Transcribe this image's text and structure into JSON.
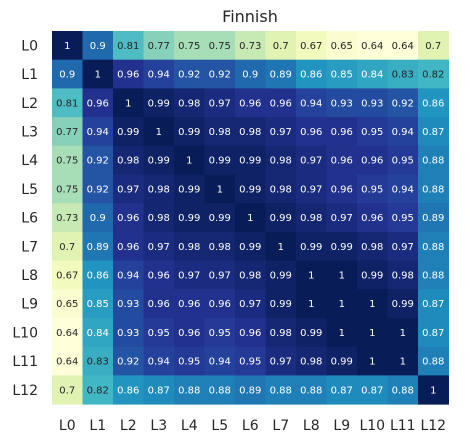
{
  "chart_data": {
    "type": "heatmap",
    "title": "Finnish",
    "xlabel": "",
    "ylabel": "",
    "x_categories": [
      "L0",
      "L1",
      "L2",
      "L3",
      "L4",
      "L5",
      "L6",
      "L7",
      "L8",
      "L9",
      "L10",
      "L11",
      "L12"
    ],
    "y_categories": [
      "L0",
      "L1",
      "L2",
      "L3",
      "L4",
      "L5",
      "L6",
      "L7",
      "L8",
      "L9",
      "L10",
      "L11",
      "L12"
    ],
    "values": [
      [
        1,
        0.9,
        0.81,
        0.77,
        0.75,
        0.75,
        0.73,
        0.7,
        0.67,
        0.65,
        0.64,
        0.64,
        0.7
      ],
      [
        0.9,
        1,
        0.96,
        0.94,
        0.92,
        0.92,
        0.9,
        0.89,
        0.86,
        0.85,
        0.84,
        0.83,
        0.82
      ],
      [
        0.81,
        0.96,
        1,
        0.99,
        0.98,
        0.97,
        0.96,
        0.96,
        0.94,
        0.93,
        0.93,
        0.92,
        0.86
      ],
      [
        0.77,
        0.94,
        0.99,
        1,
        0.99,
        0.98,
        0.98,
        0.97,
        0.96,
        0.96,
        0.95,
        0.94,
        0.87
      ],
      [
        0.75,
        0.92,
        0.98,
        0.99,
        1,
        0.99,
        0.99,
        0.98,
        0.97,
        0.96,
        0.96,
        0.95,
        0.88
      ],
      [
        0.75,
        0.92,
        0.97,
        0.98,
        0.99,
        1,
        0.99,
        0.98,
        0.97,
        0.96,
        0.95,
        0.94,
        0.88
      ],
      [
        0.73,
        0.9,
        0.96,
        0.98,
        0.99,
        0.99,
        1,
        0.99,
        0.98,
        0.97,
        0.96,
        0.95,
        0.89
      ],
      [
        0.7,
        0.89,
        0.96,
        0.97,
        0.98,
        0.98,
        0.99,
        1,
        0.99,
        0.99,
        0.98,
        0.97,
        0.88
      ],
      [
        0.67,
        0.86,
        0.94,
        0.96,
        0.97,
        0.97,
        0.98,
        0.99,
        1,
        1,
        0.99,
        0.98,
        0.88
      ],
      [
        0.65,
        0.85,
        0.93,
        0.96,
        0.96,
        0.96,
        0.97,
        0.99,
        1,
        1,
        1,
        0.99,
        0.87
      ],
      [
        0.64,
        0.84,
        0.93,
        0.95,
        0.96,
        0.95,
        0.96,
        0.98,
        0.99,
        1,
        1,
        1,
        0.87
      ],
      [
        0.64,
        0.83,
        0.92,
        0.94,
        0.95,
        0.94,
        0.95,
        0.97,
        0.98,
        0.99,
        1,
        1,
        0.88
      ],
      [
        0.7,
        0.82,
        0.86,
        0.87,
        0.88,
        0.88,
        0.89,
        0.88,
        0.88,
        0.87,
        0.87,
        0.88,
        1
      ]
    ],
    "value_range": [
      0.64,
      1
    ],
    "colormap": "YlGnBu",
    "annotated": true,
    "grid": false,
    "legend": "none"
  }
}
